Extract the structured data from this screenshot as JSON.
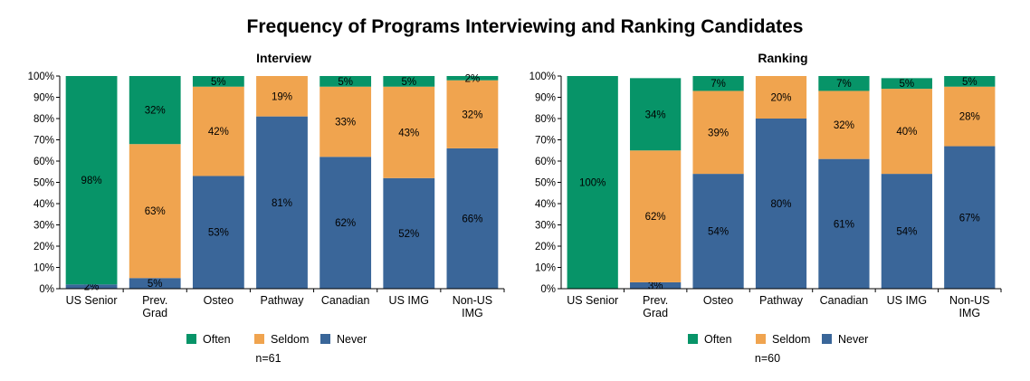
{
  "title": "Frequency of Programs Interviewing and Ranking Candidates",
  "colors": {
    "Often": "#079468",
    "Seldom": "#F0A44F",
    "Never": "#3A6699"
  },
  "chart_data": [
    {
      "type": "bar",
      "stacked": true,
      "title": "Interview",
      "categories": [
        "US Senior",
        "Prev.\nGrad",
        "Osteo",
        "Pathway",
        "Canadian",
        "US IMG",
        "Non-US\nIMG"
      ],
      "series": [
        {
          "name": "Never",
          "values": [
            2,
            5,
            53,
            81,
            62,
            52,
            66
          ],
          "labels": [
            "2%",
            "5%",
            "53%",
            "81%",
            "62%",
            "52%",
            "66%"
          ]
        },
        {
          "name": "Seldom",
          "values": [
            0,
            63,
            42,
            19,
            33,
            43,
            32
          ],
          "labels": [
            "",
            "63%",
            "42%",
            "19%",
            "33%",
            "43%",
            "32%"
          ]
        },
        {
          "name": "Often",
          "values": [
            98,
            32,
            5,
            0,
            5,
            5,
            2
          ],
          "labels": [
            "98%",
            "32%",
            "5%",
            "",
            "5%",
            "5%",
            "2%"
          ]
        }
      ],
      "yticks": [
        "0%",
        "10%",
        "20%",
        "30%",
        "40%",
        "50%",
        "60%",
        "70%",
        "80%",
        "90%",
        "100%"
      ],
      "ylim": [
        0,
        100
      ],
      "legend": [
        "Often",
        "Seldom",
        "Never"
      ],
      "legend_position": "bottom",
      "note": "n=61"
    },
    {
      "type": "bar",
      "stacked": true,
      "title": "Ranking",
      "categories": [
        "US Senior",
        "Prev.\nGrad",
        "Osteo",
        "Pathway",
        "Canadian",
        "US IMG",
        "Non-US\nIMG"
      ],
      "series": [
        {
          "name": "Never",
          "values": [
            0,
            3,
            54,
            80,
            61,
            54,
            67
          ],
          "labels": [
            "",
            "3%",
            "54%",
            "80%",
            "61%",
            "54%",
            "67%"
          ]
        },
        {
          "name": "Seldom",
          "values": [
            0,
            62,
            39,
            20,
            32,
            40,
            28
          ],
          "labels": [
            "",
            "62%",
            "39%",
            "20%",
            "32%",
            "40%",
            "28%"
          ]
        },
        {
          "name": "Often",
          "values": [
            100,
            34,
            7,
            0,
            7,
            5,
            5
          ],
          "labels": [
            "100%",
            "34%",
            "7%",
            "",
            "7%",
            "5%",
            "5%"
          ]
        }
      ],
      "yticks": [
        "0%",
        "10%",
        "20%",
        "30%",
        "40%",
        "50%",
        "60%",
        "70%",
        "80%",
        "90%",
        "100%"
      ],
      "ylim": [
        0,
        100
      ],
      "legend": [
        "Often",
        "Seldom",
        "Never"
      ],
      "legend_position": "bottom",
      "note": "n=60"
    }
  ]
}
